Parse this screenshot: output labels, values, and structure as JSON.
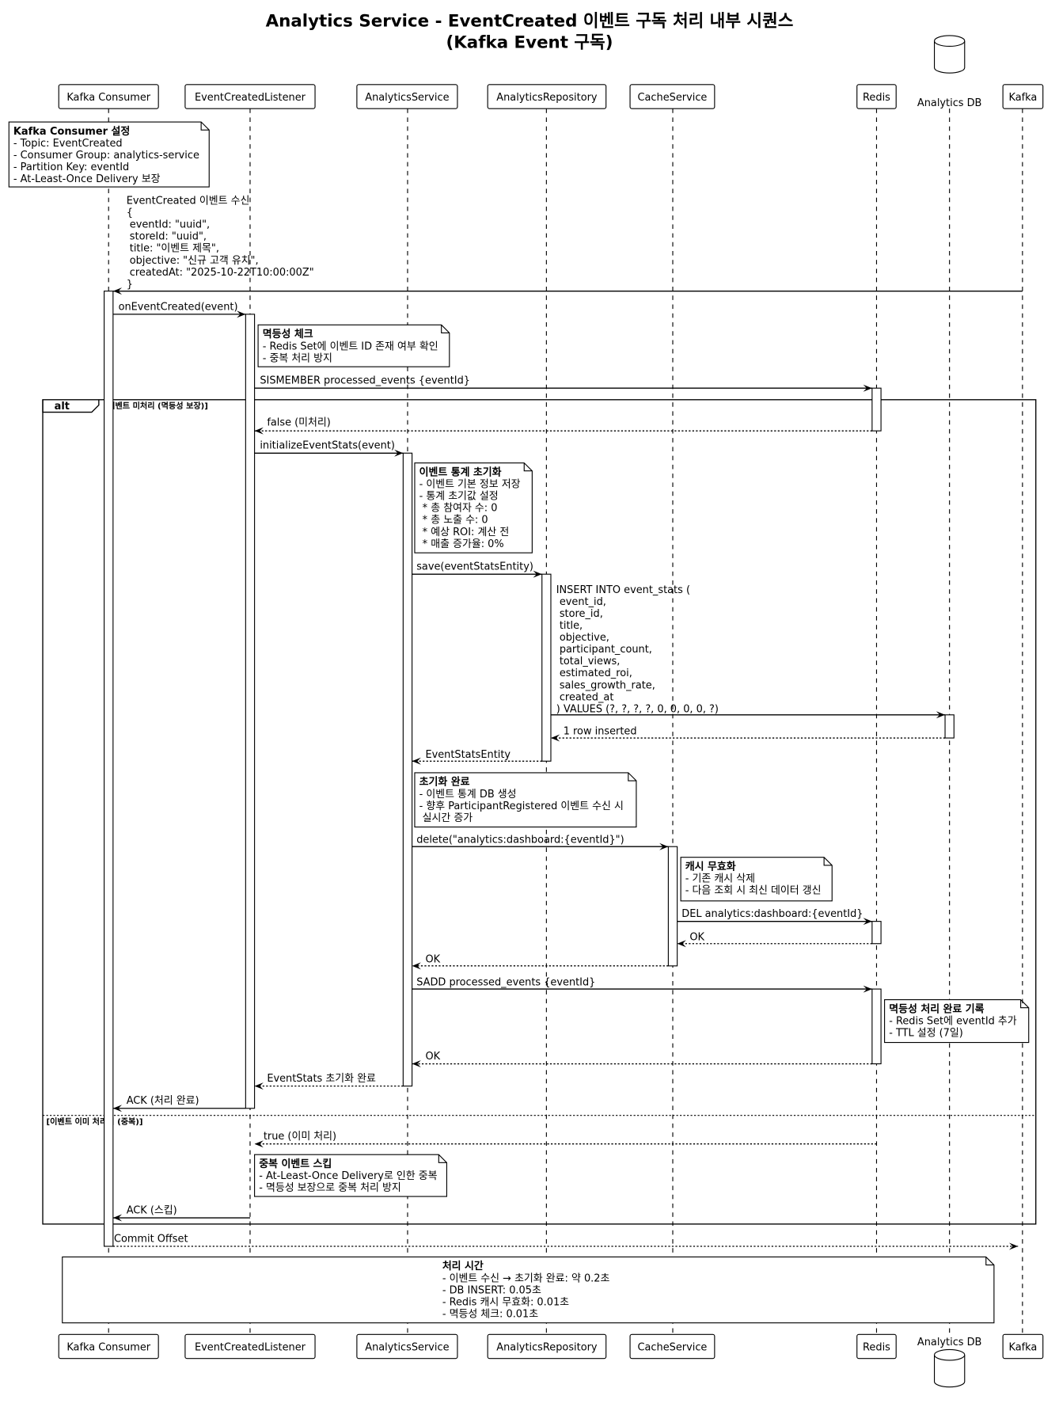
{
  "title": {
    "line1": "Analytics Service - EventCreated 이벤트 구독 처리 내부 시퀀스",
    "line2": "(Kafka Event 구독)"
  },
  "participants": [
    {
      "id": "kafka-consumer",
      "label": "Kafka Consumer",
      "kind": "participant"
    },
    {
      "id": "event-created-listener",
      "label": "EventCreatedListener",
      "kind": "participant"
    },
    {
      "id": "analytics-service",
      "label": "AnalyticsService",
      "kind": "participant"
    },
    {
      "id": "analytics-repository",
      "label": "AnalyticsRepository",
      "kind": "participant"
    },
    {
      "id": "cache-service",
      "label": "CacheService",
      "kind": "participant"
    },
    {
      "id": "redis",
      "label": "Redis",
      "kind": "participant"
    },
    {
      "id": "analytics-db",
      "label": "Analytics DB",
      "kind": "database"
    },
    {
      "id": "kafka",
      "label": "Kafka",
      "kind": "participant"
    }
  ],
  "notes": [
    {
      "title": "Kafka Consumer 설정",
      "lines": [
        "- Topic: EventCreated",
        "- Consumer Group: analytics-service",
        "- Partition Key: eventId",
        "- At-Least-Once Delivery 보장"
      ]
    },
    {
      "title": "멱등성 체크",
      "lines": [
        "- Redis Set에 이벤트 ID 존재 여부 확인",
        "- 중복 처리 방지"
      ]
    },
    {
      "title": "이벤트 통계 초기화",
      "lines": [
        "- 이벤트 기본 정보 저장",
        "- 통계 초기값 설정",
        "  * 총 참여자 수: 0",
        "  * 총 노출 수: 0",
        "  * 예상 ROI: 계산 전",
        "  * 매출 증가율: 0%"
      ]
    },
    {
      "title": "초기화 완료",
      "lines": [
        "- 이벤트 통계 DB 생성",
        "- 향후 ParticipantRegistered 이벤트 수신 시",
        "  실시간 증가"
      ]
    },
    {
      "title": "캐시 무효화",
      "lines": [
        "- 기존 캐시 삭제",
        "- 다음 조회 시 최신 데이터 갱신"
      ]
    },
    {
      "title": "멱등성 처리 완료 기록",
      "lines": [
        "- Redis Set에 eventId 추가",
        "- TTL 설정 (7일)"
      ]
    },
    {
      "title": "중복 이벤트 스킵",
      "lines": [
        "- At-Least-Once Delivery로 인한 중복",
        "- 멱등성 보장으로 중복 처리 방지"
      ]
    },
    {
      "title": "처리 시간",
      "lines": [
        "- 이벤트 수신 → 초기화 완료: 약 0.2초",
        "- DB INSERT: 0.05초",
        "- Redis 캐시 무효화: 0.01초",
        "- 멱등성 체크: 0.01초"
      ]
    }
  ],
  "messages": [
    {
      "from": "kafka",
      "to": "kafka-consumer",
      "style": "sync",
      "lines": [
        "EventCreated 이벤트 수신",
        "{",
        "  eventId: \"uuid\",",
        "  storeId: \"uuid\",",
        "  title: \"이벤트 제목\",",
        "  objective: \"신규 고객 유치\",",
        "  createdAt: \"2025-10-22T10:00:00Z\"",
        "}"
      ]
    },
    {
      "from": "kafka-consumer",
      "to": "event-created-listener",
      "style": "sync",
      "lines": [
        "onEventCreated(event)"
      ]
    },
    {
      "from": "event-created-listener",
      "to": "redis",
      "style": "sync",
      "lines": [
        "SISMEMBER processed_events {eventId}"
      ]
    },
    {
      "from": "redis",
      "to": "event-created-listener",
      "style": "return",
      "lines": [
        "false (미처리)"
      ]
    },
    {
      "from": "event-created-listener",
      "to": "analytics-service",
      "style": "sync",
      "lines": [
        "initializeEventStats(event)"
      ]
    },
    {
      "from": "analytics-service",
      "to": "analytics-repository",
      "style": "sync",
      "lines": [
        "save(eventStatsEntity)"
      ]
    },
    {
      "from": "analytics-repository",
      "to": "analytics-db",
      "style": "sync",
      "lines": [
        "INSERT INTO event_stats (",
        "  event_id,",
        "  store_id,",
        "  title,",
        "  objective,",
        "  participant_count,",
        "  total_views,",
        "  estimated_roi,",
        "  sales_growth_rate,",
        "  created_at",
        ") VALUES (?, ?, ?, ?, 0, 0, 0, 0, ?)"
      ]
    },
    {
      "from": "analytics-db",
      "to": "analytics-repository",
      "style": "return",
      "lines": [
        "1 row inserted"
      ]
    },
    {
      "from": "analytics-repository",
      "to": "analytics-service",
      "style": "return",
      "lines": [
        "EventStatsEntity"
      ]
    },
    {
      "from": "analytics-service",
      "to": "cache-service",
      "style": "sync",
      "lines": [
        "delete(\"analytics:dashboard:{eventId}\")"
      ]
    },
    {
      "from": "cache-service",
      "to": "redis",
      "style": "sync",
      "lines": [
        "DEL analytics:dashboard:{eventId}"
      ]
    },
    {
      "from": "redis",
      "to": "cache-service",
      "style": "return",
      "lines": [
        "OK"
      ]
    },
    {
      "from": "cache-service",
      "to": "analytics-service",
      "style": "return",
      "lines": [
        "OK"
      ]
    },
    {
      "from": "analytics-service",
      "to": "redis",
      "style": "sync",
      "lines": [
        "SADD processed_events {eventId}"
      ]
    },
    {
      "from": "redis",
      "to": "analytics-service",
      "style": "return",
      "lines": [
        "OK"
      ]
    },
    {
      "from": "analytics-service",
      "to": "event-created-listener",
      "style": "return",
      "lines": [
        "EventStats 초기화 완료"
      ]
    },
    {
      "from": "event-created-listener",
      "to": "kafka-consumer",
      "style": "sync",
      "lines": [
        "ACK (처리 완료)"
      ]
    },
    {
      "from": "redis",
      "to": "event-created-listener",
      "style": "return",
      "lines": [
        "true (이미 처리)"
      ]
    },
    {
      "from": "event-created-listener",
      "to": "kafka-consumer",
      "style": "sync",
      "lines": [
        "ACK (스킵)"
      ]
    },
    {
      "from": "kafka-consumer",
      "to": "kafka",
      "style": "return",
      "lines": [
        "Commit Offset"
      ]
    }
  ],
  "alt": {
    "keyword": "alt",
    "guard1": "[이벤트 미처리 (멱등성 보장)]",
    "guard2": "[이벤트 이미 처리됨 (중복)]"
  }
}
